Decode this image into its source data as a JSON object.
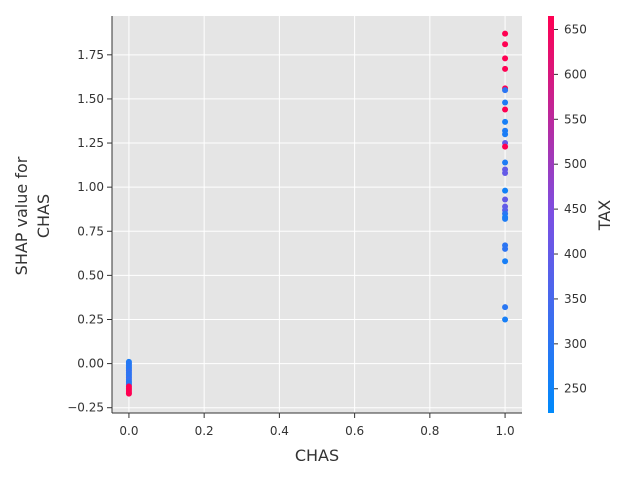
{
  "chart_data": {
    "type": "scatter",
    "title": "",
    "xlabel": "CHAS",
    "ylabel_lines": [
      "SHAP value for",
      "CHAS"
    ],
    "xlim": [
      -0.045,
      1.045
    ],
    "ylim": [
      -0.28,
      1.97
    ],
    "xticks": [
      0.0,
      0.2,
      0.4,
      0.6,
      0.8,
      1.0
    ],
    "xtick_labels": [
      "0.0",
      "0.2",
      "0.4",
      "0.6",
      "0.8",
      "1.0"
    ],
    "yticks": [
      -0.25,
      0.0,
      0.25,
      0.5,
      0.75,
      1.0,
      1.25,
      1.5,
      1.75
    ],
    "ytick_labels": [
      "−0.25",
      "0.00",
      "0.25",
      "0.50",
      "0.75",
      "1.00",
      "1.25",
      "1.50",
      "1.75"
    ],
    "grid": true,
    "colorbar": {
      "label": "TAX",
      "range": [
        223,
        665
      ],
      "ticks": [
        250,
        300,
        350,
        400,
        450,
        500,
        550,
        600,
        650
      ],
      "tick_labels": [
        "250",
        "300",
        "350",
        "400",
        "450",
        "500",
        "550",
        "600",
        "650"
      ],
      "colors": [
        "#008afb",
        "#7b4fe3",
        "#ff0052"
      ]
    },
    "points": [
      {
        "x": 1.0,
        "y": 1.87,
        "tax": 666
      },
      {
        "x": 1.0,
        "y": 1.81,
        "tax": 666
      },
      {
        "x": 1.0,
        "y": 1.73,
        "tax": 666
      },
      {
        "x": 1.0,
        "y": 1.67,
        "tax": 666
      },
      {
        "x": 1.0,
        "y": 1.56,
        "tax": 666
      },
      {
        "x": 1.0,
        "y": 1.55,
        "tax": 300
      },
      {
        "x": 1.0,
        "y": 1.48,
        "tax": 276
      },
      {
        "x": 1.0,
        "y": 1.44,
        "tax": 666
      },
      {
        "x": 1.0,
        "y": 1.37,
        "tax": 264
      },
      {
        "x": 1.0,
        "y": 1.32,
        "tax": 276
      },
      {
        "x": 1.0,
        "y": 1.3,
        "tax": 270
      },
      {
        "x": 1.0,
        "y": 1.25,
        "tax": 403
      },
      {
        "x": 1.0,
        "y": 1.23,
        "tax": 666
      },
      {
        "x": 1.0,
        "y": 1.14,
        "tax": 276
      },
      {
        "x": 1.0,
        "y": 1.1,
        "tax": 403
      },
      {
        "x": 1.0,
        "y": 1.08,
        "tax": 403
      },
      {
        "x": 1.0,
        "y": 0.98,
        "tax": 254
      },
      {
        "x": 1.0,
        "y": 0.93,
        "tax": 403
      },
      {
        "x": 1.0,
        "y": 0.89,
        "tax": 403
      },
      {
        "x": 1.0,
        "y": 0.87,
        "tax": 384
      },
      {
        "x": 1.0,
        "y": 0.85,
        "tax": 300
      },
      {
        "x": 1.0,
        "y": 0.83,
        "tax": 264
      },
      {
        "x": 1.0,
        "y": 0.82,
        "tax": 276
      },
      {
        "x": 1.0,
        "y": 0.67,
        "tax": 300
      },
      {
        "x": 1.0,
        "y": 0.65,
        "tax": 304
      },
      {
        "x": 1.0,
        "y": 0.58,
        "tax": 264
      },
      {
        "x": 1.0,
        "y": 0.32,
        "tax": 296
      },
      {
        "x": 1.0,
        "y": 0.25,
        "tax": 264
      },
      {
        "x": 0.0,
        "y": 0.01,
        "tax": 270
      },
      {
        "x": 0.0,
        "y": 0.0,
        "tax": 300
      },
      {
        "x": 0.0,
        "y": -0.01,
        "tax": 280
      },
      {
        "x": 0.0,
        "y": -0.02,
        "tax": 300
      },
      {
        "x": 0.0,
        "y": -0.03,
        "tax": 290
      },
      {
        "x": 0.0,
        "y": -0.04,
        "tax": 300
      },
      {
        "x": 0.0,
        "y": -0.05,
        "tax": 320
      },
      {
        "x": 0.0,
        "y": -0.06,
        "tax": 300
      },
      {
        "x": 0.0,
        "y": -0.07,
        "tax": 311
      },
      {
        "x": 0.0,
        "y": -0.08,
        "tax": 300
      },
      {
        "x": 0.0,
        "y": -0.09,
        "tax": 330
      },
      {
        "x": 0.0,
        "y": -0.1,
        "tax": 300
      },
      {
        "x": 0.0,
        "y": -0.11,
        "tax": 280
      },
      {
        "x": 0.0,
        "y": -0.12,
        "tax": 300
      },
      {
        "x": 0.0,
        "y": -0.13,
        "tax": 666
      },
      {
        "x": 0.0,
        "y": -0.14,
        "tax": 666
      },
      {
        "x": 0.0,
        "y": -0.15,
        "tax": 666
      },
      {
        "x": 0.0,
        "y": -0.16,
        "tax": 666
      },
      {
        "x": 0.0,
        "y": -0.17,
        "tax": 666
      }
    ]
  }
}
